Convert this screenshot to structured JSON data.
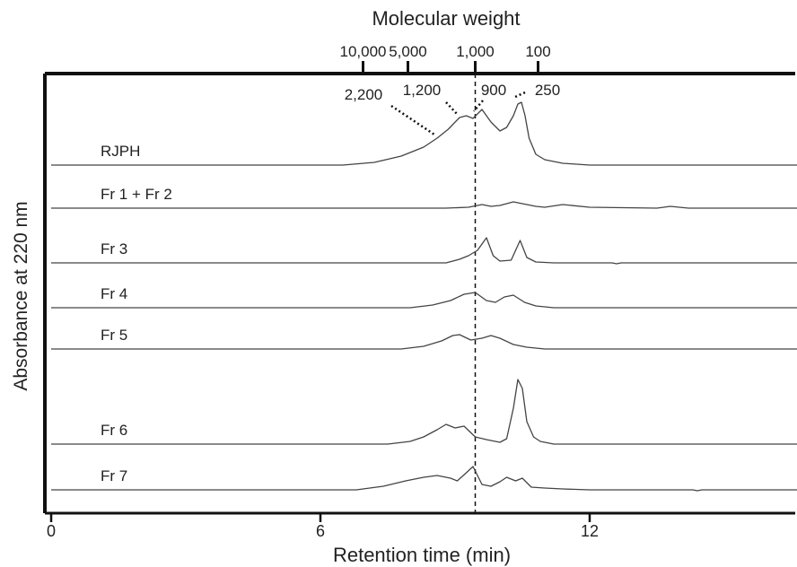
{
  "chart_data": {
    "type": "line",
    "title": "",
    "xlabel": "Retention time (min)",
    "ylabel": "Absorbance at 220 nm",
    "xlim": [
      0,
      17.8
    ],
    "x_ticks": [
      "0",
      "6",
      "12"
    ],
    "x_tick_values": [
      0,
      6,
      12
    ],
    "top_axis": {
      "label": "Molecular weight",
      "ticks": [
        {
          "label": "10,000",
          "x": 6.95
        },
        {
          "label": "5,000",
          "x": 7.95
        },
        {
          "label": "1,000",
          "x": 9.45
        },
        {
          "label": "100",
          "x": 10.85
        }
      ]
    },
    "reference_line_x": 9.45,
    "peak_labels": [
      {
        "label": "2,200",
        "x": 8.6
      },
      {
        "label": "1,200",
        "x": 9.2
      },
      {
        "label": "900",
        "x": 9.6
      },
      {
        "label": "250",
        "x": 10.4
      }
    ],
    "series": [
      {
        "name": "RJPH",
        "baseline": 0,
        "x": [
          0,
          6.5,
          7.2,
          7.8,
          8.3,
          8.6,
          8.85,
          9.1,
          9.25,
          9.4,
          9.6,
          9.8,
          10.0,
          10.15,
          10.3,
          10.4,
          10.48,
          10.56,
          10.65,
          10.8,
          11.0,
          11.4,
          12,
          17.8
        ],
        "y": [
          0,
          0,
          3,
          10,
          20,
          30,
          40,
          53,
          55,
          52,
          62,
          48,
          38,
          42,
          55,
          68,
          70,
          55,
          30,
          12,
          6,
          2,
          0,
          0
        ]
      },
      {
        "name": "Fr 1 + Fr 2",
        "baseline": 0,
        "x": [
          0,
          8.8,
          9.3,
          9.6,
          9.8,
          10.0,
          10.3,
          10.6,
          10.8,
          11.0,
          11.4,
          12.0,
          13.5,
          13.8,
          14.2,
          17.8
        ],
        "y": [
          0,
          0,
          1,
          4,
          2,
          3,
          7,
          4,
          2,
          1,
          4,
          1,
          0,
          2,
          0,
          0
        ]
      },
      {
        "name": "Fr 3",
        "baseline": 0,
        "x": [
          0,
          8.8,
          9.1,
          9.3,
          9.5,
          9.7,
          9.85,
          10.0,
          10.25,
          10.45,
          10.6,
          10.8,
          11.2,
          12.5,
          12.6,
          12.7,
          17.8
        ],
        "y": [
          0,
          0,
          4,
          8,
          14,
          28,
          8,
          2,
          3,
          25,
          6,
          1,
          0,
          0,
          -1,
          0,
          0
        ]
      },
      {
        "name": "Fr 4",
        "baseline": 0,
        "x": [
          0,
          8.0,
          8.5,
          8.9,
          9.2,
          9.45,
          9.7,
          9.9,
          10.1,
          10.3,
          10.55,
          10.8,
          11.2,
          17.8
        ],
        "y": [
          0,
          0,
          3,
          8,
          15,
          17,
          8,
          6,
          12,
          14,
          6,
          2,
          0,
          0
        ]
      },
      {
        "name": "Fr 5",
        "baseline": 0,
        "x": [
          0,
          7.8,
          8.3,
          8.7,
          8.95,
          9.1,
          9.35,
          9.6,
          9.8,
          10.0,
          10.3,
          10.6,
          11.0,
          17.8
        ],
        "y": [
          0,
          0,
          3,
          9,
          15,
          16,
          10,
          12,
          15,
          12,
          5,
          2,
          0,
          0
        ]
      },
      {
        "name": "Fr 6",
        "baseline": 0,
        "x": [
          0,
          7.5,
          8.0,
          8.3,
          8.6,
          8.8,
          9.0,
          9.2,
          9.45,
          9.7,
          10.0,
          10.15,
          10.3,
          10.4,
          10.5,
          10.6,
          10.75,
          10.9,
          11.2,
          17.8
        ],
        "y": [
          0,
          0,
          3,
          8,
          16,
          22,
          18,
          20,
          8,
          5,
          2,
          6,
          40,
          72,
          62,
          25,
          8,
          3,
          0,
          0
        ]
      },
      {
        "name": "Fr 7",
        "baseline": 0,
        "x": [
          0,
          6.8,
          7.4,
          7.9,
          8.3,
          8.6,
          8.9,
          9.05,
          9.25,
          9.4,
          9.6,
          9.8,
          10.0,
          10.15,
          10.35,
          10.5,
          10.7,
          11.0,
          11.4,
          12.0,
          14.3,
          14.4,
          14.5,
          17.8
        ],
        "y": [
          0,
          0,
          4,
          10,
          14,
          16,
          13,
          10,
          19,
          26,
          6,
          4,
          9,
          14,
          10,
          13,
          3,
          2,
          1,
          0,
          0,
          -1,
          0,
          0
        ]
      }
    ]
  }
}
